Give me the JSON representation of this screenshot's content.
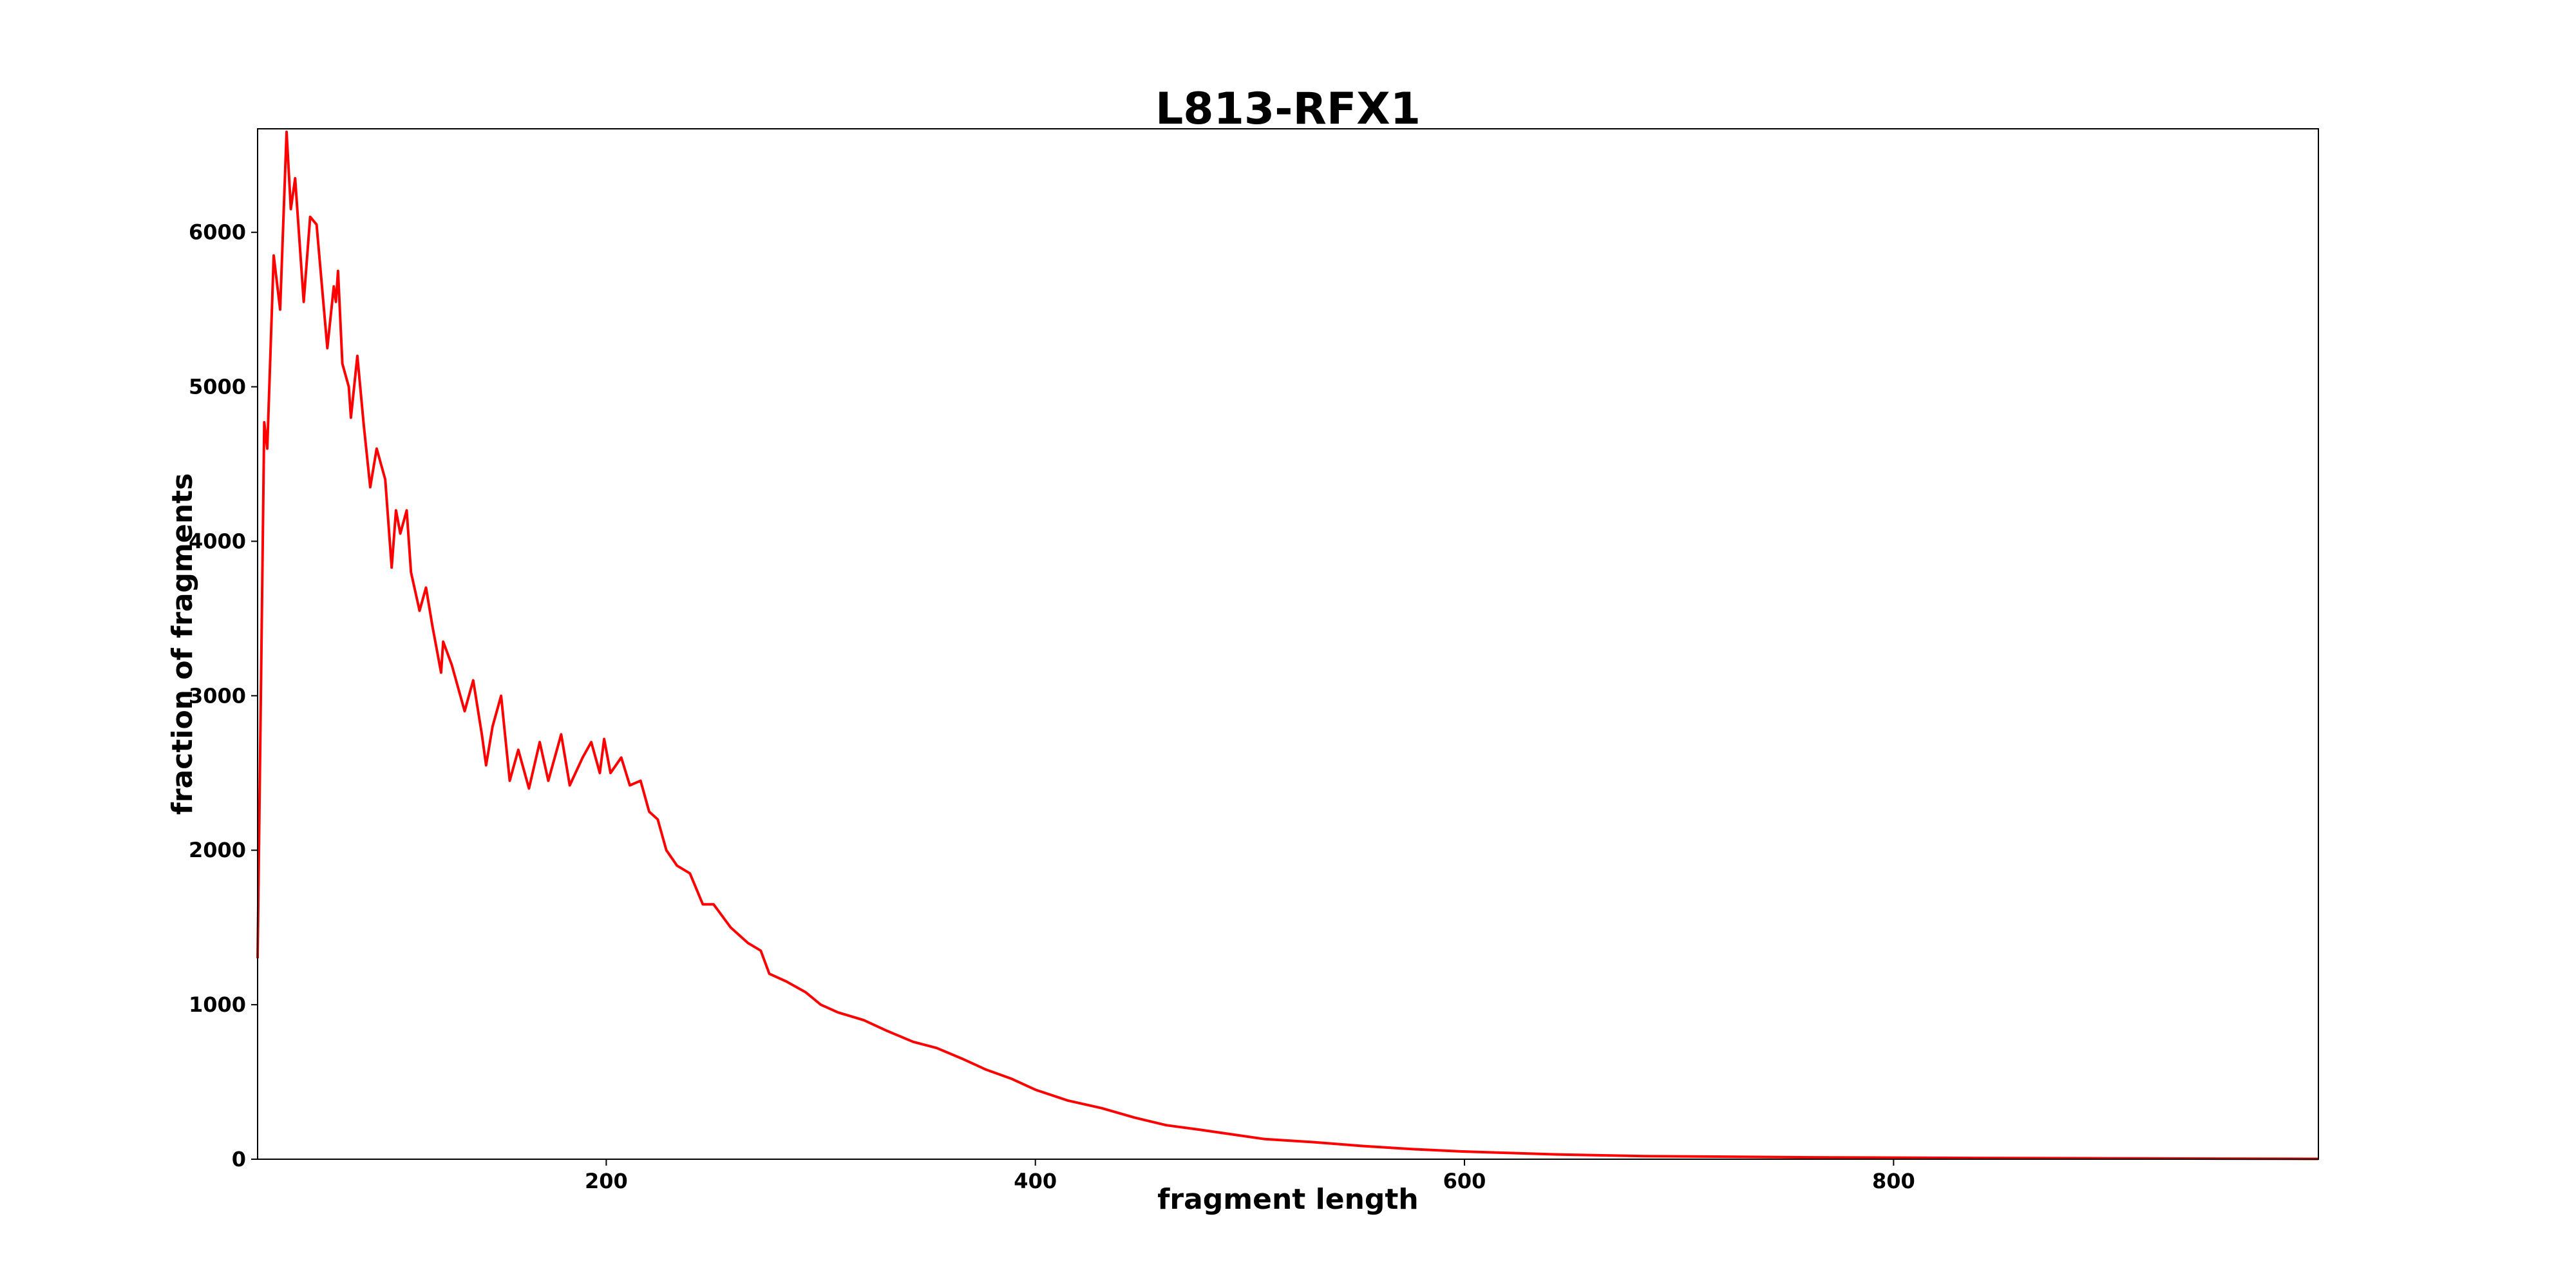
{
  "chart_data": {
    "type": "line",
    "title": "L813-RFX1",
    "xlabel": "fragment length",
    "ylabel": "fraction of fragments",
    "xlim": [
      37.5,
      998
    ],
    "ylim": [
      0,
      6670
    ],
    "xticks": [
      200,
      400,
      600,
      800
    ],
    "yticks": [
      0,
      1000,
      2000,
      3000,
      4000,
      5000,
      6000
    ],
    "grid": false,
    "line_color": "#ff0000",
    "series": [
      {
        "name": "L813-RFX1",
        "x": [
          37.5,
          40.6,
          42,
          45,
          48,
          51,
          53,
          55,
          59,
          62,
          65,
          70,
          73,
          74,
          75,
          77,
          80,
          81,
          84,
          87,
          90,
          93,
          97,
          100,
          102,
          104,
          107,
          109,
          113,
          116,
          119,
          123,
          124,
          128,
          131,
          134,
          138,
          142,
          144,
          147,
          151,
          155,
          159,
          164,
          169,
          173,
          179,
          183,
          189,
          193,
          197,
          199,
          202,
          207,
          211,
          216,
          220,
          224,
          228,
          233,
          239,
          245,
          250,
          258,
          266,
          272,
          276,
          284,
          293,
          300,
          308,
          320,
          331,
          343,
          354,
          366,
          377,
          389,
          400,
          415,
          431,
          446,
          461,
          477,
          492,
          507,
          530,
          553,
          576,
          599,
          645,
          684,
          760,
          837,
          913,
          998
        ],
        "y": [
          1300,
          4770,
          4600,
          5850,
          5500,
          6650,
          6150,
          6350,
          5550,
          6100,
          6050,
          5250,
          5650,
          5550,
          5750,
          5150,
          5000,
          4800,
          5200,
          4750,
          4350,
          4600,
          4400,
          3830,
          4200,
          4050,
          4200,
          3800,
          3550,
          3700,
          3450,
          3150,
          3350,
          3200,
          3050,
          2900,
          3100,
          2750,
          2550,
          2800,
          3000,
          2450,
          2650,
          2400,
          2700,
          2450,
          2750,
          2420,
          2600,
          2700,
          2500,
          2720,
          2500,
          2600,
          2420,
          2450,
          2250,
          2200,
          2000,
          1900,
          1850,
          1650,
          1650,
          1500,
          1400,
          1350,
          1200,
          1150,
          1080,
          1000,
          950,
          900,
          830,
          760,
          720,
          650,
          580,
          520,
          450,
          380,
          330,
          270,
          220,
          190,
          160,
          130,
          110,
          85,
          65,
          50,
          30,
          20,
          12,
          8,
          5,
          2
        ]
      }
    ]
  }
}
